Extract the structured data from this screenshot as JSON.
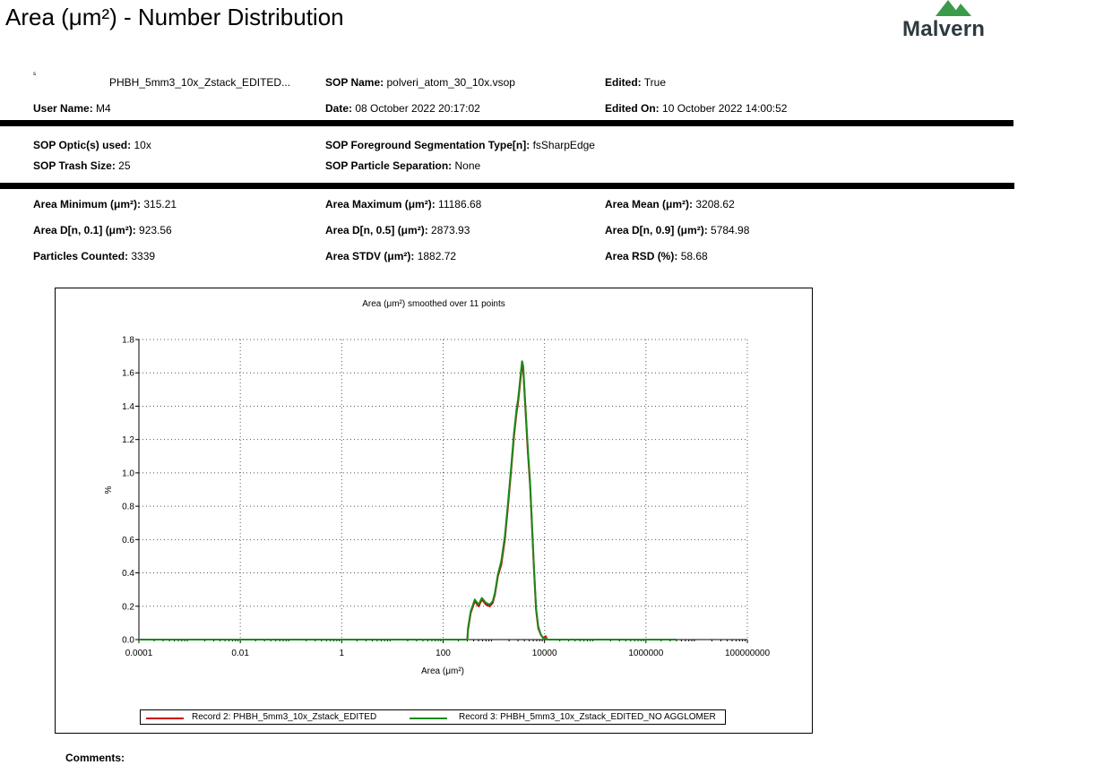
{
  "header": {
    "title": "Area (μm²) - Number Distribution",
    "logo_text": "Malvern",
    "logo_color": "#3a9b4a"
  },
  "fields": {
    "row1": [
      {
        "label": "",
        "value": "PHBH_5mm3_10x_Zstack_EDITED..."
      },
      {
        "label": "SOP Name:",
        "value": "polveri_atom_30_10x.vsop"
      },
      {
        "label": "Edited:",
        "value": "True"
      }
    ],
    "row2": [
      {
        "label": "User Name:",
        "value": "M4"
      },
      {
        "label": "Date:",
        "value": "08 October 2022 20:17:02"
      },
      {
        "label": "Edited On:",
        "value": "10 October 2022 14:00:52"
      }
    ],
    "row3": [
      {
        "label": "SOP Optic(s) used:",
        "value": "10x"
      },
      {
        "label": "SOP Foreground Segmentation Type[n]:",
        "value": "fsSharpEdge"
      }
    ],
    "row4": [
      {
        "label": "SOP Trash Size:",
        "value": "25"
      },
      {
        "label": "SOP Particle Separation:",
        "value": "None"
      }
    ],
    "row5": [
      {
        "label": "Area Minimum (μm²):",
        "value": "315.21"
      },
      {
        "label": "Area Maximum (μm²):",
        "value": "11186.68"
      },
      {
        "label": "Area Mean (μm²):",
        "value": "3208.62"
      }
    ],
    "row6": [
      {
        "label": "Area D[n, 0.1] (μm²):",
        "value": "923.56"
      },
      {
        "label": "Area D[n, 0.5] (μm²):",
        "value": "2873.93"
      },
      {
        "label": "Area D[n, 0.9] (μm²):",
        "value": "5784.98"
      }
    ],
    "row7": [
      {
        "label": "Particles Counted:",
        "value": "3339"
      },
      {
        "label": "Area STDV (μm²):",
        "value": "1882.72"
      },
      {
        "label": "Area RSD (%):",
        "value": "58.68"
      }
    ]
  },
  "comments_label": "Comments:",
  "chart_data": {
    "type": "line",
    "title": "Area (μm²) smoothed over 11 points",
    "xlabel": "Area (μm²)",
    "ylabel": "%",
    "xscale": "log",
    "xlim": [
      0.0001,
      100000000
    ],
    "ylim": [
      0,
      1.8
    ],
    "xticks": [
      0.0001,
      0.01,
      1,
      100,
      10000,
      1000000,
      100000000
    ],
    "xtick_labels": [
      "0.0001",
      "0.01",
      "1",
      "100",
      "10000",
      "1000000",
      "100000000"
    ],
    "yticks": [
      0,
      0.2,
      0.4,
      0.6,
      0.8,
      1.0,
      1.2,
      1.4,
      1.6,
      1.8
    ],
    "ytick_labels": [
      "0.0",
      "0.2",
      "0.4",
      "0.6",
      "0.8",
      "1.0",
      "1.2",
      "1.4",
      "1.6",
      "1.8"
    ],
    "grid": true,
    "legend_position": "bottom",
    "series": [
      {
        "name": "Record 2: PHBH_5mm3_10x_Zstack_EDITED",
        "color": "#cc0000",
        "x": [
          0.0001,
          100,
          300,
          310,
          350,
          420,
          500,
          580,
          700,
          830,
          950,
          1050,
          1200,
          1400,
          1650,
          1900,
          2200,
          2500,
          2800,
          3000,
          3200,
          3400,
          3600,
          3800,
          4000,
          4300,
          4700,
          5200,
          5700,
          6200,
          6800,
          7500,
          8400,
          9400,
          10500,
          11200,
          12000,
          4000000
        ],
        "y": [
          0,
          0,
          0,
          0.06,
          0.16,
          0.23,
          0.2,
          0.24,
          0.21,
          0.2,
          0.22,
          0.27,
          0.38,
          0.45,
          0.6,
          0.8,
          1.02,
          1.22,
          1.36,
          1.42,
          1.5,
          1.58,
          1.64,
          1.62,
          1.5,
          1.33,
          1.12,
          0.92,
          0.65,
          0.42,
          0.18,
          0.07,
          0.03,
          0.01,
          0.02,
          0.0,
          0,
          0
        ]
      },
      {
        "name": "Record 3: PHBH_5mm3_10x_Zstack_EDITED_NO AGGLOMER",
        "color": "#1a8a1a",
        "x": [
          0.0001,
          100,
          300,
          310,
          350,
          420,
          500,
          580,
          700,
          830,
          950,
          1050,
          1200,
          1400,
          1650,
          1900,
          2200,
          2500,
          2800,
          3000,
          3200,
          3400,
          3600,
          3800,
          4000,
          4300,
          4700,
          5200,
          5700,
          6200,
          6800,
          7500,
          8400,
          9400,
          10500,
          11200,
          12000,
          4000000
        ],
        "y": [
          0,
          0,
          0,
          0.07,
          0.17,
          0.24,
          0.21,
          0.25,
          0.22,
          0.21,
          0.23,
          0.28,
          0.39,
          0.47,
          0.62,
          0.82,
          1.04,
          1.24,
          1.38,
          1.44,
          1.52,
          1.6,
          1.67,
          1.64,
          1.52,
          1.35,
          1.14,
          0.94,
          0.67,
          0.43,
          0.19,
          0.08,
          0.03,
          0.01,
          0.01,
          0.0,
          0,
          0
        ]
      }
    ]
  }
}
